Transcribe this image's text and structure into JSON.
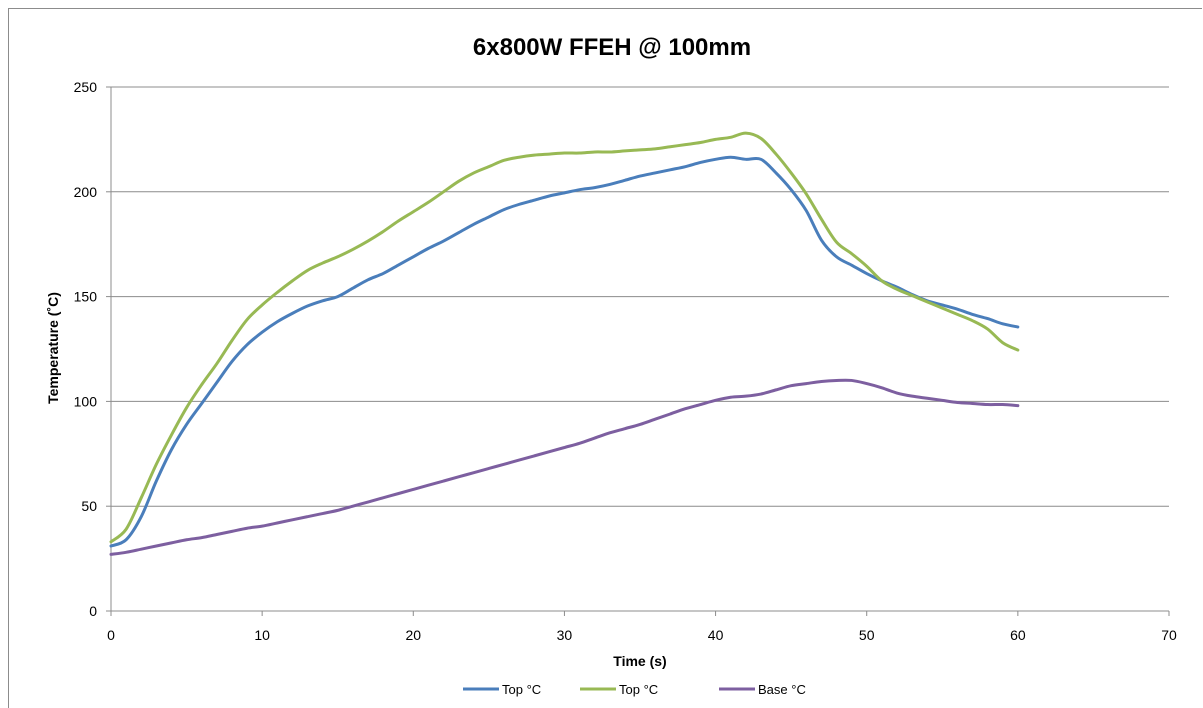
{
  "chart_data": {
    "type": "line",
    "title": "6x800W FFEH @ 100mm",
    "xlabel": "Time (s)",
    "ylabel": "Temperature (˚C)",
    "xlim": [
      0,
      70
    ],
    "ylim": [
      0,
      250
    ],
    "x_ticks": [
      "0",
      "10",
      "20",
      "30",
      "40",
      "50",
      "60",
      "70"
    ],
    "y_ticks": [
      "0",
      "50",
      "100",
      "150",
      "200",
      "250"
    ],
    "grid": "horizontal",
    "legend_position": "bottom",
    "x": [
      0,
      1,
      2,
      3,
      4,
      5,
      6,
      7,
      8,
      9,
      10,
      11,
      12,
      13,
      14,
      15,
      16,
      17,
      18,
      19,
      20,
      21,
      22,
      23,
      24,
      25,
      26,
      27,
      28,
      29,
      30,
      31,
      32,
      33,
      34,
      35,
      36,
      37,
      38,
      39,
      40,
      41,
      42,
      43,
      44,
      45,
      46,
      47,
      48,
      49,
      50,
      51,
      52,
      53,
      54,
      55,
      56,
      57,
      58,
      59,
      60
    ],
    "series": [
      {
        "name": "Top °C",
        "color": "#4a7ebb",
        "values": [
          31,
          34,
          45,
          62,
          77,
          89,
          99,
          109,
          119,
          127,
          133,
          138,
          142,
          145.5,
          148,
          150,
          154,
          158,
          161,
          165,
          169,
          173,
          176.5,
          180.5,
          184.5,
          188,
          191.5,
          194,
          196,
          198,
          199.5,
          201,
          202,
          203.5,
          205.5,
          207.5,
          209,
          210.5,
          212,
          214,
          215.5,
          216.5,
          215.5,
          215.5,
          209,
          201,
          191,
          177,
          169,
          165,
          161,
          157.5,
          154.5,
          151,
          148,
          146,
          144,
          141.5,
          139.5,
          137,
          135.5
        ]
      },
      {
        "name": "Top °C",
        "color": "#98b954",
        "values": [
          33,
          39,
          54,
          70,
          84,
          97,
          108,
          118,
          129,
          139,
          146,
          152,
          157.5,
          162.5,
          166,
          169,
          172.5,
          176.5,
          181,
          186,
          190.5,
          195,
          200,
          205,
          209,
          212,
          215,
          216.5,
          217.5,
          218,
          218.5,
          218.5,
          219,
          219,
          219.5,
          220,
          220.5,
          221.5,
          222.5,
          223.5,
          225,
          226,
          228,
          225.5,
          218,
          209,
          199,
          187,
          176,
          170.5,
          164.5,
          157.5,
          153.5,
          150.5,
          147.5,
          144.5,
          141.5,
          138.5,
          134.5,
          128,
          124.5
        ]
      },
      {
        "name": "Base °C",
        "color": "#7d5fa0",
        "values": [
          27,
          28,
          29.5,
          31,
          32.5,
          34,
          35,
          36.5,
          38,
          39.5,
          40.5,
          42,
          43.5,
          45,
          46.5,
          48,
          50,
          52,
          54,
          56,
          58,
          60,
          62,
          64,
          66,
          68,
          70,
          72,
          74,
          76,
          78,
          80,
          82.5,
          85,
          87,
          89,
          91.5,
          94,
          96.5,
          98.5,
          100.5,
          102,
          102.5,
          103.5,
          105.5,
          107.5,
          108.5,
          109.5,
          110,
          110,
          108.5,
          106.5,
          104,
          102.5,
          101.5,
          100.5,
          99.5,
          99,
          98.5,
          98.5,
          98
        ]
      }
    ]
  }
}
